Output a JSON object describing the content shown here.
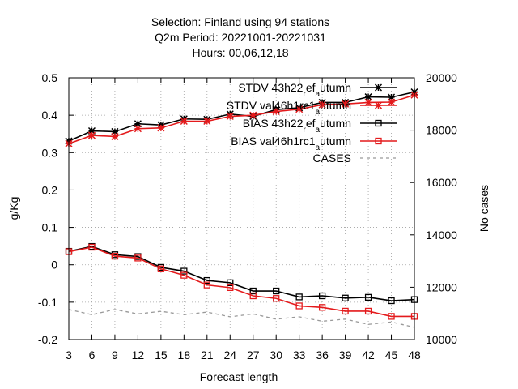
{
  "chart_data": {
    "type": "line",
    "title_lines": [
      "Selection: Finland using    94 stations",
      "Q2m   Period: 20221001-20221031",
      "Hours:  00,06,12,18"
    ],
    "xlabel": "Forecast length",
    "ylabel": "g/Kg",
    "y2label": "No cases",
    "x": [
      3,
      6,
      9,
      12,
      15,
      18,
      21,
      24,
      27,
      30,
      33,
      36,
      39,
      42,
      45,
      48
    ],
    "xlim": [
      3,
      48
    ],
    "ylim": [
      -0.2,
      0.5
    ],
    "y2lim": [
      10000,
      20000
    ],
    "yticks": [
      "-0.2",
      "-0.1",
      "0",
      "0.1",
      "0.2",
      "0.3",
      "0.4",
      "0.5"
    ],
    "y2ticks": [
      "10000",
      "12000",
      "14000",
      "16000",
      "18000",
      "20000"
    ],
    "xticks": [
      "3",
      "6",
      "9",
      "12",
      "15",
      "18",
      "21",
      "24",
      "27",
      "30",
      "33",
      "36",
      "39",
      "42",
      "45",
      "48"
    ],
    "grid": true,
    "legend_position": "top-right",
    "series": [
      {
        "name": "STDV 43h22_r ef_a utumn",
        "legend_parts": [
          [
            "STDV 43h22",
            "n"
          ],
          [
            "r",
            "sub"
          ],
          [
            "ef",
            "n"
          ],
          [
            "a",
            "sub"
          ],
          [
            "utumn",
            "n"
          ]
        ],
        "axis": "y1",
        "color": "#000000",
        "marker": "star",
        "values": [
          0.331,
          0.358,
          0.356,
          0.377,
          0.374,
          0.39,
          0.389,
          0.403,
          0.397,
          0.415,
          0.42,
          0.434,
          0.434,
          0.449,
          0.448,
          0.462
        ]
      },
      {
        "name": "STDV val46h1rc1_a utumn",
        "legend_parts": [
          [
            "STDV val46h1rc1",
            "n"
          ],
          [
            "a",
            "sub"
          ],
          [
            "utumn",
            "n"
          ]
        ],
        "axis": "y1",
        "color": "#e41a1c",
        "marker": "star",
        "values": [
          0.324,
          0.346,
          0.343,
          0.364,
          0.366,
          0.384,
          0.384,
          0.397,
          0.4,
          0.41,
          0.416,
          0.428,
          0.43,
          0.434,
          0.435,
          0.454
        ]
      },
      {
        "name": "BIAS 43h22_r ef_a utumn",
        "legend_parts": [
          [
            "BIAS 43h22",
            "n"
          ],
          [
            "r",
            "sub"
          ],
          [
            "ef",
            "n"
          ],
          [
            "a",
            "sub"
          ],
          [
            "utumn",
            "n"
          ]
        ],
        "axis": "y1",
        "color": "#000000",
        "marker": "square",
        "values": [
          0.036,
          0.049,
          0.027,
          0.022,
          -0.007,
          -0.017,
          -0.042,
          -0.048,
          -0.07,
          -0.07,
          -0.086,
          -0.083,
          -0.089,
          -0.087,
          -0.096,
          -0.093
        ]
      },
      {
        "name": "BIAS val46h1rc1_a utumn",
        "legend_parts": [
          [
            "BIAS val46h1rc1",
            "n"
          ],
          [
            "a",
            "sub"
          ],
          [
            "utumn",
            "n"
          ]
        ],
        "axis": "y1",
        "color": "#e41a1c",
        "marker": "square",
        "values": [
          0.035,
          0.047,
          0.023,
          0.018,
          -0.011,
          -0.028,
          -0.054,
          -0.061,
          -0.083,
          -0.09,
          -0.11,
          -0.114,
          -0.124,
          -0.124,
          -0.138,
          -0.138
        ]
      },
      {
        "name": "CASES",
        "legend_parts": [
          [
            "CASES",
            "n"
          ]
        ],
        "axis": "y2",
        "color": "#999999",
        "marker": "none",
        "dashed": true,
        "values": [
          11150,
          10950,
          11150,
          10980,
          11080,
          10950,
          11050,
          10870,
          10980,
          10780,
          10870,
          10700,
          10780,
          10580,
          10670,
          10470
        ]
      }
    ]
  }
}
